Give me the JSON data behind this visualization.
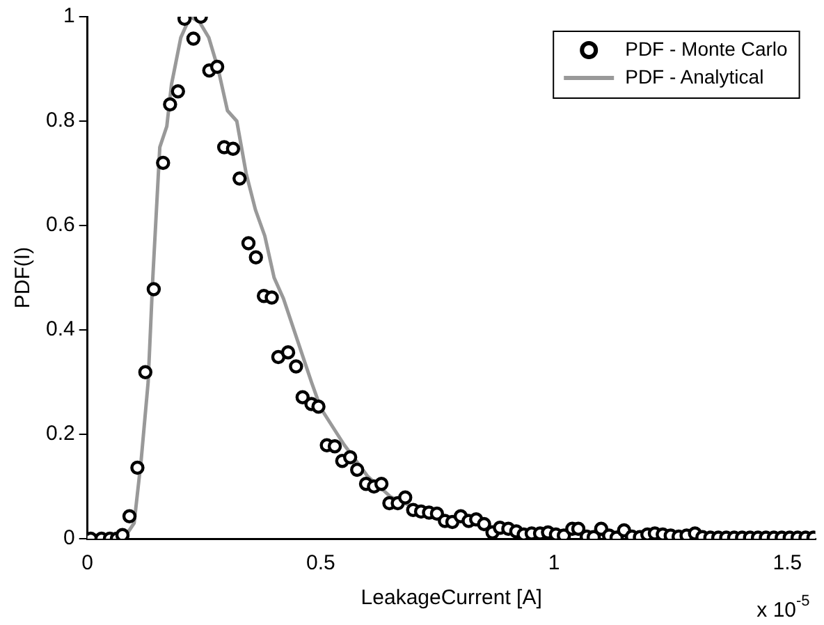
{
  "chart_data": {
    "type": "scatter",
    "xlabel": "LeakageCurrent [A]",
    "ylabel": "PDF(I)",
    "annotations": [
      "x 10$^{-5}$"
    ],
    "xlim": [
      0,
      1.56
    ],
    "xticks": [
      0,
      0.5,
      1,
      1.5
    ],
    "ylim": [
      0,
      1
    ],
    "yticks": [
      0,
      0.2,
      0.4,
      0.6,
      0.8,
      1
    ],
    "grid": false,
    "legend": "top right",
    "marker": "circle",
    "series": [
      {
        "name": "PDF - Monte Carlo",
        "color": "#000000",
        "x": [
          0.007,
          0.03,
          0.048,
          0.063,
          0.075,
          0.09,
          0.107,
          0.124,
          0.142,
          0.162,
          0.177,
          0.194,
          0.208,
          0.227,
          0.243,
          0.261,
          0.278,
          0.293,
          0.312,
          0.326,
          0.345,
          0.361,
          0.378,
          0.395,
          0.409,
          0.43,
          0.447,
          0.461,
          0.48,
          0.495,
          0.513,
          0.53,
          0.546,
          0.563,
          0.578,
          0.597,
          0.614,
          0.63,
          0.647,
          0.665,
          0.681,
          0.698,
          0.715,
          0.732,
          0.749,
          0.766,
          0.782,
          0.8,
          0.817,
          0.833,
          0.85,
          0.868,
          0.884,
          0.902,
          0.919,
          0.935,
          0.952,
          0.97,
          0.987,
          1.004,
          1.021,
          1.039,
          1.052,
          1.07,
          1.085,
          1.101,
          1.118,
          1.134,
          1.15,
          1.167,
          1.184,
          1.2,
          1.216,
          1.233,
          1.25,
          1.267,
          1.284,
          1.302,
          1.318,
          1.335,
          1.352,
          1.369,
          1.386,
          1.403,
          1.42,
          1.437,
          1.454,
          1.471,
          1.488,
          1.505,
          1.522,
          1.539,
          1.556
        ],
        "values": [
          0,
          0,
          0,
          0,
          0.007,
          0.043,
          0.136,
          0.319,
          0.478,
          0.72,
          0.832,
          0.857,
          0.996,
          0.958,
          1,
          0.897,
          0.904,
          0.75,
          0.747,
          0.69,
          0.566,
          0.539,
          0.465,
          0.462,
          0.348,
          0.357,
          0.33,
          0.271,
          0.258,
          0.253,
          0.179,
          0.177,
          0.149,
          0.156,
          0.132,
          0.105,
          0.1,
          0.105,
          0.068,
          0.068,
          0.079,
          0.055,
          0.052,
          0.05,
          0.048,
          0.034,
          0.032,
          0.043,
          0.034,
          0.037,
          0.028,
          0.012,
          0.021,
          0.019,
          0.014,
          0.008,
          0.01,
          0.01,
          0.012,
          0.008,
          0.006,
          0.019,
          0.019,
          0.004,
          0.003,
          0.019,
          0.006,
          0.002,
          0.016,
          0.004,
          0.003,
          0.008,
          0.01,
          0.008,
          0.006,
          0.004,
          0.006,
          0.01,
          0.003,
          0.002,
          0.002,
          0.002,
          0.002,
          0.002,
          0.002,
          0.002,
          0.002,
          0.002,
          0.002,
          0.002,
          0.002,
          0.002,
          0.002
        ]
      },
      {
        "name": "PDF - Analytical",
        "type": "line",
        "color": "#999999",
        "marker": "none",
        "x": [
          0,
          0.08,
          0.1,
          0.115,
          0.13,
          0.14,
          0.155,
          0.17,
          0.18,
          0.2,
          0.22,
          0.24,
          0.26,
          0.28,
          0.3,
          0.32,
          0.34,
          0.36,
          0.38,
          0.4,
          0.42,
          0.45,
          0.48,
          0.5,
          0.55,
          0.6,
          0.65,
          0.7,
          0.75,
          0.8,
          0.85,
          0.9,
          1.0,
          1.1,
          1.2,
          1.3,
          1.4,
          1.56
        ],
        "values": [
          0,
          0.003,
          0.03,
          0.15,
          0.3,
          0.5,
          0.75,
          0.79,
          0.87,
          0.96,
          1,
          0.99,
          0.96,
          0.9,
          0.82,
          0.8,
          0.7,
          0.63,
          0.58,
          0.5,
          0.46,
          0.38,
          0.3,
          0.25,
          0.18,
          0.12,
          0.08,
          0.06,
          0.045,
          0.035,
          0.025,
          0.018,
          0.012,
          0.008,
          0.005,
          0.003,
          0.002,
          0.001
        ]
      }
    ]
  }
}
